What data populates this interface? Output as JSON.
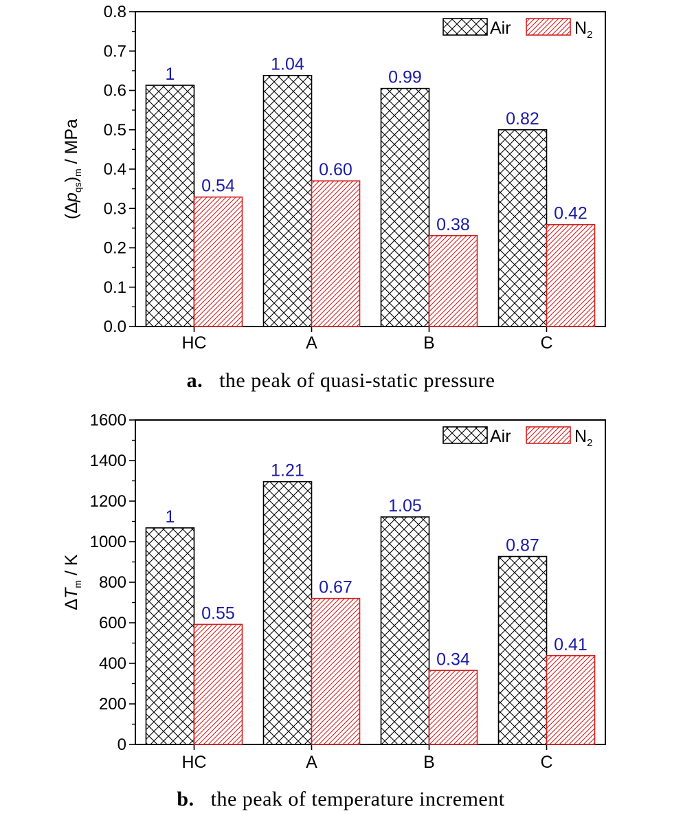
{
  "chart_data": [
    {
      "type": "bar",
      "categories": [
        "HC",
        "A",
        "B",
        "C"
      ],
      "series": [
        {
          "name": "Air",
          "values": [
            0.613,
            0.638,
            0.605,
            0.5
          ],
          "labels": [
            "1",
            "1.04",
            "0.99",
            "0.82"
          ]
        },
        {
          "name": "N",
          "name_sub": "2",
          "values": [
            0.329,
            0.37,
            0.231,
            0.259
          ],
          "labels": [
            "0.54",
            "0.60",
            "0.38",
            "0.42"
          ]
        }
      ],
      "ylim": [
        0,
        0.8
      ],
      "yticks": [
        "0.0",
        "0.1",
        "0.2",
        "0.3",
        "0.4",
        "0.5",
        "0.6",
        "0.7",
        "0.8"
      ],
      "ylabel": {
        "pre": "(Δ",
        "italic": "p",
        "sub": "qs",
        "post": ")",
        "sub2": "m",
        "unit": " / MPa"
      },
      "caption_num": "a.",
      "caption": "the peak of quasi-static pressure",
      "legend": "top-right",
      "colors": {
        "air": "#000000",
        "n2": "#d42020"
      }
    },
    {
      "type": "bar",
      "categories": [
        "HC",
        "A",
        "B",
        "C"
      ],
      "series": [
        {
          "name": "Air",
          "values": [
            1068,
            1296,
            1122,
            927
          ],
          "labels": [
            "1",
            "1.21",
            "1.05",
            "0.87"
          ]
        },
        {
          "name": "N",
          "name_sub": "2",
          "values": [
            592,
            720,
            365,
            438
          ],
          "labels": [
            "0.55",
            "0.67",
            "0.34",
            "0.41"
          ]
        }
      ],
      "ylim": [
        0,
        1600
      ],
      "yticks": [
        "0",
        "200",
        "400",
        "600",
        "800",
        "1000",
        "1200",
        "1400",
        "1600"
      ],
      "ylabel": {
        "pre": "Δ",
        "italic": "T",
        "sub": "m",
        "unit": " / K"
      },
      "caption_num": "b.",
      "caption": "the peak of temperature increment",
      "legend": "top-right",
      "colors": {
        "air": "#000000",
        "n2": "#d42020"
      }
    }
  ]
}
